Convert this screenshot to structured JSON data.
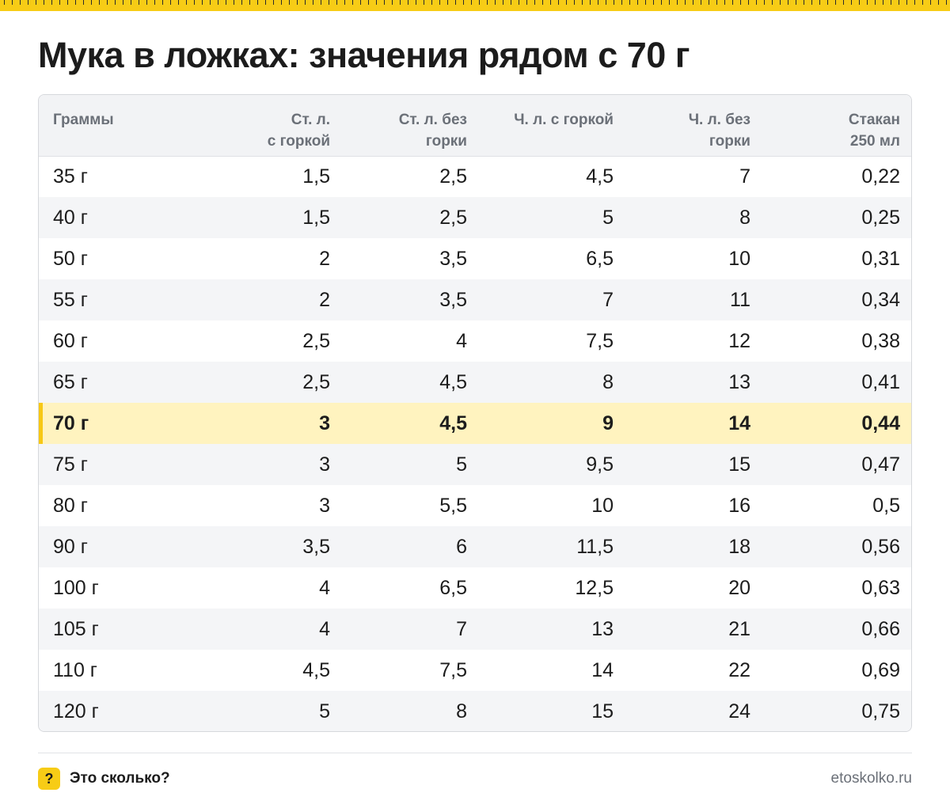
{
  "title": "Мука в ложках: значения рядом с 70 г",
  "table": {
    "headers": [
      [
        "Граммы"
      ],
      [
        "Ст. л.",
        "с горкой"
      ],
      [
        "Ст. л. без",
        "горки"
      ],
      [
        "Ч. л. с горкой"
      ],
      [
        "Ч. л. без",
        "горки"
      ],
      [
        "Стакан",
        "250 мл"
      ]
    ],
    "highlight_grams": "70 г",
    "rows": [
      [
        "35 г",
        "1,5",
        "2,5",
        "4,5",
        "7",
        "0,22"
      ],
      [
        "40 г",
        "1,5",
        "2,5",
        "5",
        "8",
        "0,25"
      ],
      [
        "50 г",
        "2",
        "3,5",
        "6,5",
        "10",
        "0,31"
      ],
      [
        "55 г",
        "2",
        "3,5",
        "7",
        "11",
        "0,34"
      ],
      [
        "60 г",
        "2,5",
        "4",
        "7,5",
        "12",
        "0,38"
      ],
      [
        "65 г",
        "2,5",
        "4,5",
        "8",
        "13",
        "0,41"
      ],
      [
        "70 г",
        "3",
        "4,5",
        "9",
        "14",
        "0,44"
      ],
      [
        "75 г",
        "3",
        "5",
        "9,5",
        "15",
        "0,47"
      ],
      [
        "80 г",
        "3",
        "5,5",
        "10",
        "16",
        "0,5"
      ],
      [
        "90 г",
        "3,5",
        "6",
        "11,5",
        "18",
        "0,56"
      ],
      [
        "100 г",
        "4",
        "6,5",
        "12,5",
        "20",
        "0,63"
      ],
      [
        "105 г",
        "4",
        "7",
        "13",
        "21",
        "0,66"
      ],
      [
        "110 г",
        "4,5",
        "7,5",
        "14",
        "22",
        "0,69"
      ],
      [
        "120 г",
        "5",
        "8",
        "15",
        "24",
        "0,75"
      ]
    ]
  },
  "footer": {
    "badge": "?",
    "brand": "Это сколько?",
    "site": "etoskolko.ru"
  },
  "colors": {
    "accent": "#f7cc16",
    "highlight_row": "#fff3bf",
    "header_bg": "#f2f3f5",
    "stripe": "#f4f5f7"
  }
}
